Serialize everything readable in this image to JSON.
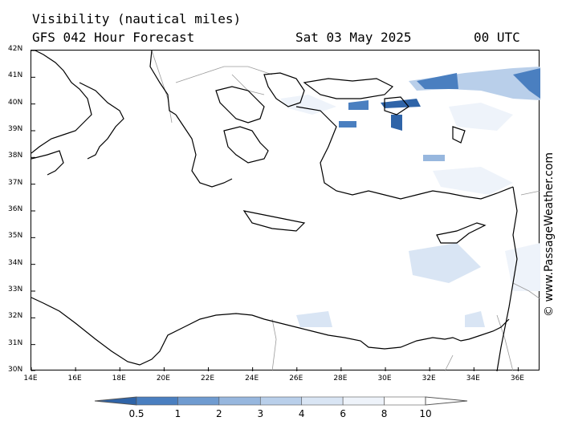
{
  "header": {
    "title_line1": "Visibility (nautical miles)",
    "title_line2": "GFS 042 Hour Forecast",
    "date": "Sat 03 May 2025",
    "time": "00 UTC"
  },
  "copyright": "© www.PassageWeather.com",
  "axes": {
    "lat_labels": [
      "42N",
      "41N",
      "40N",
      "39N",
      "38N",
      "37N",
      "36N",
      "35N",
      "34N",
      "33N",
      "32N",
      "31N",
      "30N"
    ],
    "lon_labels": [
      "14E",
      "16E",
      "18E",
      "20E",
      "22E",
      "24E",
      "26E",
      "28E",
      "30E",
      "32E",
      "34E",
      "36E"
    ]
  },
  "legend": {
    "labels": [
      "0.5",
      "1",
      "2",
      "3",
      "4",
      "6",
      "8",
      "10"
    ],
    "colors": [
      "#2f64a8",
      "#4a7fc0",
      "#6f9bd0",
      "#97b7de",
      "#b9cfea",
      "#d9e5f4",
      "#eef3fa",
      "#ffffff"
    ]
  }
}
